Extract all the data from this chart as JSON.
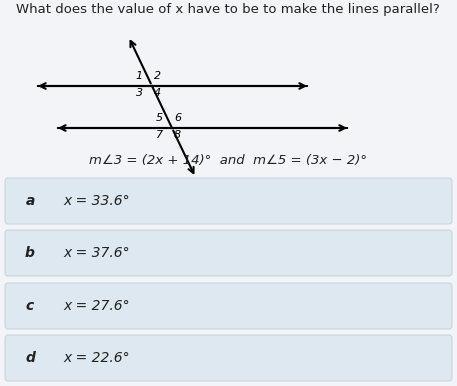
{
  "title": "What does the value of x have to be to make the lines parallel?",
  "title_fontsize": 9.5,
  "equation": "m∠3 = (2x + 14)°  and  m∠5 = (3x − 2)°",
  "equation_fontsize": 9.5,
  "options": [
    {
      "label": "a",
      "text": "x = 33.6°"
    },
    {
      "label": "b",
      "text": "x = 37.6°"
    },
    {
      "label": "c",
      "text": "x = 27.6°"
    },
    {
      "label": "d",
      "text": "x = 22.6°"
    }
  ],
  "bg_color": "#f2f4f7",
  "box_color": "#dde8f0",
  "box_edge_color": "#c5d3dc",
  "text_color": "#222222",
  "fig_bg": "#f2f4f7",
  "diagram_bg": "#f2f4f7"
}
